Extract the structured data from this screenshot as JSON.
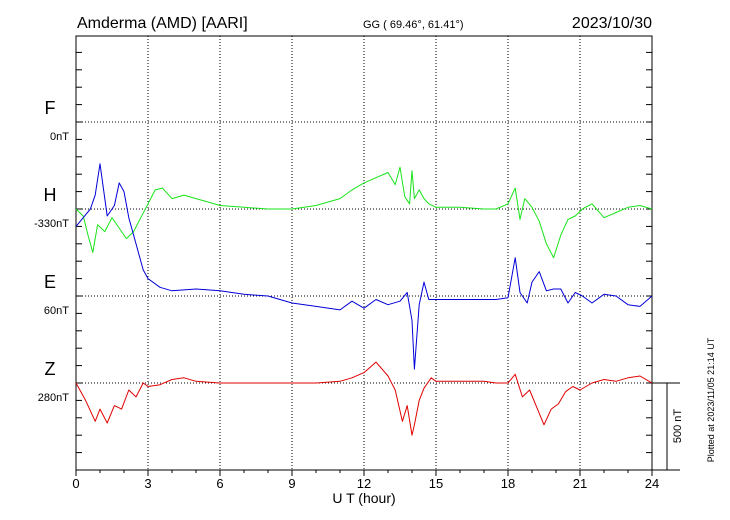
{
  "header": {
    "station": "Amderma (AMD)  [AARI]",
    "coords": "GG ( 69.46°,  61.41°)",
    "date": "2023/10/30"
  },
  "footer": {
    "plotted_note": "Plotted at 2023/11/05 21:14 UT"
  },
  "colors": {
    "F": "#e8a800",
    "H": "#18e418",
    "E": "#0000d8",
    "Z": "#e00000",
    "axis": "#000000"
  },
  "chart_data": {
    "type": "line",
    "xlabel": "U T (hour)",
    "xlim": [
      0,
      24
    ],
    "xticks": [
      "0",
      "3",
      "6",
      "9",
      "12",
      "15",
      "18",
      "21",
      "24"
    ],
    "grid": true,
    "scale_bar": {
      "label": "500 nT",
      "nT": 500
    },
    "series": [
      {
        "name": "F",
        "baseline_label": "0nT",
        "x": [],
        "values": []
      },
      {
        "name": "H",
        "baseline_label": "-330nT",
        "x": [
          0,
          0.3,
          0.5,
          0.7,
          0.9,
          1.2,
          1.5,
          1.8,
          2.1,
          2.4,
          2.7,
          3.0,
          3.3,
          3.6,
          4.0,
          4.5,
          5.0,
          5.5,
          6.0,
          7.0,
          8.0,
          9.0,
          10.0,
          11.0,
          11.5,
          12.0,
          12.5,
          13.0,
          13.3,
          13.5,
          13.7,
          13.9,
          14.0,
          14.1,
          14.3,
          14.5,
          14.7,
          15.0,
          16.0,
          17.0,
          17.5,
          18.0,
          18.3,
          18.5,
          18.7,
          19.0,
          19.3,
          19.6,
          19.9,
          20.2,
          20.5,
          20.8,
          21.1,
          21.5,
          22.0,
          22.5,
          23.0,
          23.5,
          24.0
        ],
        "values": [
          0,
          -40,
          -150,
          -250,
          -90,
          -130,
          -50,
          -110,
          -170,
          -130,
          -50,
          30,
          110,
          120,
          60,
          80,
          60,
          40,
          20,
          10,
          0,
          0,
          20,
          60,
          110,
          150,
          180,
          210,
          140,
          240,
          70,
          30,
          220,
          60,
          110,
          60,
          30,
          10,
          10,
          0,
          0,
          30,
          120,
          -60,
          60,
          10,
          -70,
          -200,
          -280,
          -150,
          -60,
          -40,
          0,
          30,
          -50,
          -20,
          10,
          20,
          0
        ]
      },
      {
        "name": "E",
        "baseline_label": "60nT",
        "x": [
          0,
          0.3,
          0.6,
          0.8,
          1.0,
          1.3,
          1.6,
          1.8,
          2.0,
          2.2,
          2.5,
          2.8,
          3.0,
          3.5,
          4.0,
          5.0,
          6.0,
          7.0,
          8.0,
          9.0,
          10.0,
          11.0,
          11.5,
          12.0,
          12.5,
          13.0,
          13.5,
          13.8,
          14.0,
          14.1,
          14.3,
          14.5,
          14.7,
          15.0,
          16.0,
          17.0,
          17.5,
          18.0,
          18.3,
          18.5,
          18.8,
          19.0,
          19.3,
          19.6,
          19.9,
          20.2,
          20.5,
          20.8,
          21.1,
          21.5,
          22.0,
          22.5,
          23.0,
          23.5,
          24.0
        ],
        "values": [
          400,
          450,
          500,
          580,
          760,
          460,
          520,
          650,
          600,
          450,
          300,
          150,
          100,
          50,
          30,
          40,
          30,
          10,
          0,
          -40,
          -60,
          -80,
          -30,
          -70,
          -20,
          -50,
          -30,
          20,
          -140,
          -420,
          -50,
          80,
          -20,
          -20,
          -20,
          -20,
          -20,
          -10,
          220,
          20,
          -40,
          80,
          140,
          30,
          40,
          40,
          -40,
          20,
          0,
          -40,
          10,
          0,
          -50,
          -60,
          0
        ]
      },
      {
        "name": "Z",
        "baseline_label": "280nT",
        "x": [
          0,
          0.4,
          0.8,
          1.0,
          1.3,
          1.6,
          1.9,
          2.2,
          2.5,
          2.8,
          3.0,
          3.5,
          4.0,
          4.5,
          5.0,
          6.0,
          7.0,
          8.0,
          9.0,
          10.0,
          11.0,
          11.5,
          12.0,
          12.5,
          13.0,
          13.3,
          13.6,
          13.8,
          14.0,
          14.1,
          14.3,
          14.5,
          14.8,
          15.0,
          15.5,
          16.0,
          17.0,
          17.5,
          18.0,
          18.3,
          18.6,
          18.9,
          19.2,
          19.5,
          19.8,
          20.1,
          20.4,
          20.7,
          21.0,
          21.5,
          22.0,
          22.5,
          23.0,
          23.5,
          24.0
        ],
        "values": [
          0,
          -100,
          -220,
          -150,
          -230,
          -130,
          -150,
          -40,
          -80,
          0,
          -20,
          -10,
          20,
          30,
          10,
          0,
          0,
          0,
          0,
          0,
          10,
          30,
          60,
          120,
          40,
          -40,
          -220,
          -130,
          -300,
          -240,
          -100,
          -30,
          30,
          10,
          10,
          10,
          10,
          0,
          0,
          50,
          -80,
          -40,
          -140,
          -240,
          -150,
          -120,
          -50,
          -20,
          -40,
          0,
          20,
          10,
          30,
          40,
          0
        ]
      }
    ]
  }
}
